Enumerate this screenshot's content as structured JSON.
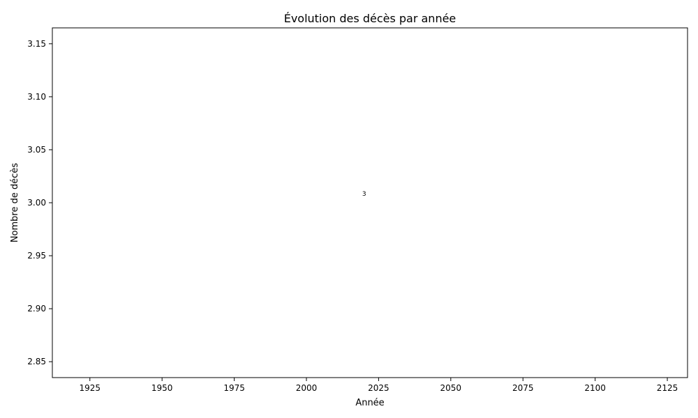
{
  "chart_data": {
    "type": "line",
    "title": "Évolution des décès par année",
    "xlabel": "Année",
    "ylabel": "Nombre de décès",
    "x": [
      2020
    ],
    "series": [
      {
        "values": [
          3
        ],
        "data_labels": [
          "3"
        ]
      }
    ],
    "xlim": [
      1912,
      2132
    ],
    "ylim": [
      2.835,
      3.165
    ],
    "xticks": [
      1925,
      1950,
      1975,
      2000,
      2025,
      2050,
      2075,
      2100,
      2125
    ],
    "xtick_labels": [
      "1925",
      "1950",
      "1975",
      "2000",
      "2025",
      "2050",
      "2075",
      "2100",
      "2125"
    ],
    "yticks": [
      2.85,
      2.9,
      2.95,
      3.0,
      3.05,
      3.1,
      3.15
    ],
    "ytick_labels": [
      "2.85",
      "2.90",
      "2.95",
      "3.00",
      "3.05",
      "3.10",
      "3.15"
    ],
    "grid": false,
    "legend": "none"
  }
}
